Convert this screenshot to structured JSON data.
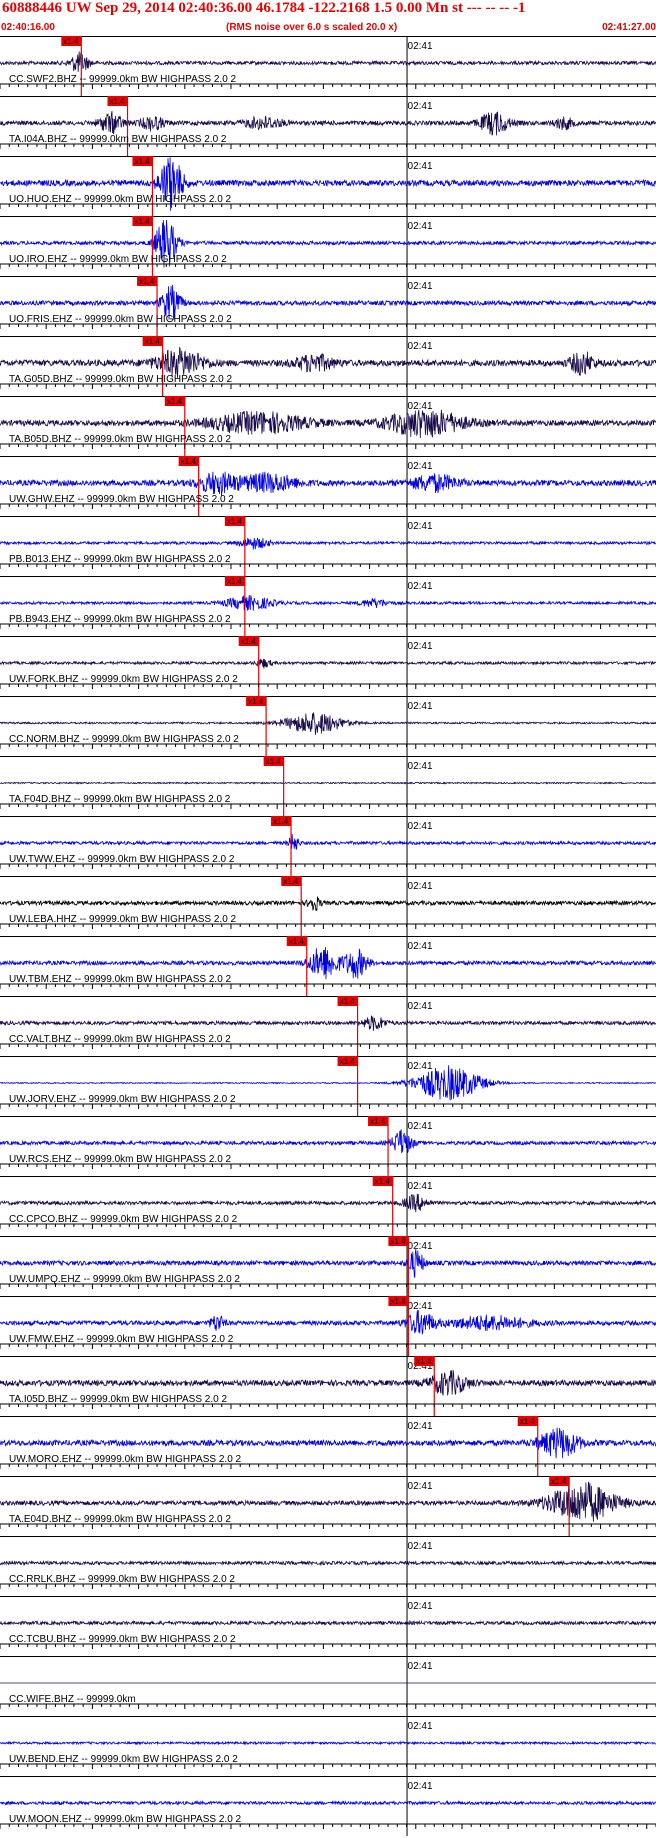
{
  "header": {
    "title": "60888446 UW Sep 29, 2014 02:40:36.00   46.1784 -122.2168  1.5 0.00 Mn st --- -- --   -1",
    "start_time": "02:40:16.00",
    "subtitle": "(RMS noise over 6.0 s scaled 20.0 x)",
    "end_time": "02:41:27.00"
  },
  "chart_data": {
    "type": "line",
    "chart_kind": "seismogram record section",
    "x_axis": {
      "start": "02:40:16.00",
      "end": "02:41:27.00",
      "unit": "s",
      "range": [
        0,
        71
      ],
      "midline_label": "02:41",
      "midline_at": 44
    },
    "pick_label": "x1.4",
    "colors": {
      "dark": "#1a0a4a",
      "blue": "#0000e6",
      "black": "#000000",
      "pick": "#e60000"
    },
    "traces": [
      {
        "label": "CC.SWF2.BHZ -- 99999.0km BW  HIGHPASS  2.0  2",
        "color": "dark",
        "noise": 0.16,
        "pick": 8.8,
        "events": [
          [
            8.6,
            0.9,
            1.0
          ]
        ]
      },
      {
        "label": "TA.I04A.BHZ -- 99999.0km BW  HIGHPASS  2.0  2",
        "color": "dark",
        "noise": 0.2,
        "pick": 13.8,
        "events": [
          [
            12.0,
            0.9,
            1.2
          ],
          [
            16.5,
            0.6,
            1.2
          ],
          [
            28.5,
            0.5,
            2.0
          ],
          [
            53.5,
            1.0,
            1.5
          ],
          [
            61.0,
            0.5,
            1.0
          ]
        ]
      },
      {
        "label": "UO.HUO.EHZ -- 99999.0km BW  HIGHPASS  2.0  2",
        "color": "blue",
        "noise": 0.26,
        "pick": 16.5,
        "events": [
          [
            18.5,
            2.4,
            1.2
          ]
        ]
      },
      {
        "label": "UO.IRO.EHZ -- 99999.0km BW  HIGHPASS  2.0  2",
        "color": "blue",
        "noise": 0.16,
        "pick": 16.5,
        "events": [
          [
            18.0,
            2.3,
            1.1
          ]
        ]
      },
      {
        "label": "UO.FRIS.EHZ -- 99999.0km BW  HIGHPASS  2.0  2",
        "color": "blue",
        "noise": 0.2,
        "pick": 17.0,
        "events": [
          [
            18.5,
            1.5,
            1.0
          ]
        ]
      },
      {
        "label": "TA.G05D.BHZ -- 99999.0km BW  HIGHPASS  2.0  2",
        "color": "dark",
        "noise": 0.28,
        "pick": 17.6,
        "events": [
          [
            19.5,
            1.2,
            2.5
          ],
          [
            34.0,
            0.7,
            2.0
          ],
          [
            63.0,
            1.0,
            1.2
          ]
        ]
      },
      {
        "label": "TA.B05D.BHZ -- 99999.0km BW  HIGHPASS  2.0  2",
        "color": "dark",
        "noise": 0.25,
        "pick": 20.0,
        "events": [
          [
            28.0,
            0.9,
            5.0
          ],
          [
            46.0,
            1.2,
            4.0
          ]
        ]
      },
      {
        "label": "UW.GHW.EHZ -- 99999.0km BW  HIGHPASS  2.0  2",
        "color": "blue",
        "noise": 0.25,
        "pick": 21.5,
        "events": [
          [
            23.5,
            0.9,
            2.0
          ],
          [
            29.0,
            0.8,
            3.0
          ],
          [
            47.0,
            0.7,
            2.5
          ]
        ]
      },
      {
        "label": "PB.B013.EHZ -- 99999.0km BW  HIGHPASS  2.0  2",
        "color": "blue",
        "noise": 0.12,
        "pick": 26.5,
        "events": [
          [
            27.5,
            0.5,
            1.5
          ]
        ]
      },
      {
        "label": "PB.B943.EHZ -- 99999.0km BW  HIGHPASS  2.0  2",
        "color": "blue",
        "noise": 0.12,
        "pick": 26.5,
        "events": [
          [
            27.0,
            0.6,
            2.5
          ],
          [
            40.5,
            0.35,
            1.5
          ]
        ]
      },
      {
        "label": "UW.FORK.BHZ -- 99999.0km BW  HIGHPASS  2.0  2",
        "color": "dark",
        "noise": 0.12,
        "pick": 28.0,
        "events": [
          [
            28.5,
            0.4,
            0.8
          ]
        ]
      },
      {
        "label": "CC.NORM.BHZ -- 99999.0km BW  HIGHPASS  2.0  2",
        "color": "dark",
        "noise": 0.08,
        "pick": 28.8,
        "events": [
          [
            34.0,
            1.0,
            3.0
          ]
        ]
      },
      {
        "label": "TA.F04D.BHZ -- 99999.0km BW  HIGHPASS  2.0  2",
        "color": "dark",
        "noise": 0.06,
        "pick": 30.7,
        "events": []
      },
      {
        "label": "UW.TWW.EHZ -- 99999.0km BW  HIGHPASS  2.0  2",
        "color": "blue",
        "noise": 0.14,
        "pick": 31.5,
        "events": [
          [
            31.8,
            0.8,
            0.5
          ]
        ]
      },
      {
        "label": "UW.LEBA.HHZ -- 99999.0km BW  HIGHPASS  2.0  2",
        "color": "black",
        "noise": 0.18,
        "pick": 32.6,
        "events": [
          [
            34.0,
            0.7,
            0.6
          ]
        ]
      },
      {
        "label": "UW.TBM.EHZ -- 99999.0km BW  HIGHPASS  2.0  2",
        "color": "blue",
        "noise": 0.18,
        "pick": 33.2,
        "events": [
          [
            35.0,
            1.5,
            1.5
          ],
          [
            38.5,
            1.3,
            1.2
          ]
        ]
      },
      {
        "label": "CC.VALT.BHZ -- 99999.0km BW  HIGHPASS  2.0  2",
        "color": "dark",
        "noise": 0.16,
        "pick": 38.7,
        "events": [
          [
            40.5,
            0.6,
            1.2
          ]
        ]
      },
      {
        "label": "UW.JORV.EHZ -- 99999.0km BW  HIGHPASS  2.0  2",
        "color": "blue",
        "noise": 0.05,
        "pick": 38.7,
        "events": [
          [
            48.5,
            1.6,
            3.5
          ]
        ]
      },
      {
        "label": "UW.RCS.EHZ -- 99999.0km BW  HIGHPASS  2.0  2",
        "color": "blue",
        "noise": 0.16,
        "pick": 42.0,
        "events": [
          [
            43.5,
            1.2,
            1.0
          ]
        ]
      },
      {
        "label": "CC.CPCO.BHZ -- 99999.0km BW  HIGHPASS  2.0  2",
        "color": "dark",
        "noise": 0.16,
        "pick": 42.5,
        "events": [
          [
            45.0,
            0.7,
            1.2
          ]
        ]
      },
      {
        "label": "UW.UMPQ.EHZ -- 99999.0km BW  HIGHPASS  2.0  2",
        "color": "blue",
        "noise": 0.2,
        "pick": 44.2,
        "events": [
          [
            45.0,
            1.2,
            0.8
          ]
        ]
      },
      {
        "label": "UW.FMW.EHZ -- 99999.0km BW  HIGHPASS  2.0  2",
        "color": "blue",
        "noise": 0.2,
        "pick": 44.2,
        "events": [
          [
            23.5,
            0.7,
            0.7
          ],
          [
            45.5,
            1.0,
            1.5
          ],
          [
            53.0,
            0.6,
            4.0
          ]
        ]
      },
      {
        "label": "TA.I05D.BHZ -- 99999.0km BW  HIGHPASS  2.0  2",
        "color": "dark",
        "noise": 0.25,
        "pick": 47.0,
        "events": [
          [
            48.5,
            1.0,
            2.0
          ]
        ]
      },
      {
        "label": "UW.MORO.EHZ -- 99999.0km BW  HIGHPASS  2.0  2",
        "color": "blue",
        "noise": 0.25,
        "pick": 58.2,
        "events": [
          [
            60.5,
            1.3,
            2.0
          ]
        ]
      },
      {
        "label": "TA.E04D.BHZ -- 99999.0km BW  HIGHPASS  2.0  2",
        "color": "dark",
        "noise": 0.2,
        "pick": 61.6,
        "events": [
          [
            63.0,
            1.8,
            3.5
          ]
        ]
      },
      {
        "label": "CC.RRLK.BHZ -- 99999.0km BW  HIGHPASS  2.0  2",
        "color": "dark",
        "noise": 0.15,
        "pick": null,
        "events": []
      },
      {
        "label": "CC.TCBU.BHZ -- 99999.0km BW  HIGHPASS  2.0  2",
        "color": "dark",
        "noise": 0.15,
        "pick": null,
        "events": []
      },
      {
        "label": "CC.WIFE.BHZ -- 99999.0km",
        "color": "dark",
        "noise": 0.0,
        "pick": null,
        "events": []
      },
      {
        "label": "UW.BEND.EHZ -- 99999.0km BW  HIGHPASS  2.0  2",
        "color": "blue",
        "noise": 0.1,
        "pick": null,
        "events": []
      },
      {
        "label": "UW.MOON.EHZ -- 99999.0km BW  HIGHPASS  2.0  2",
        "color": "blue",
        "noise": 0.14,
        "pick": null,
        "events": []
      }
    ]
  }
}
